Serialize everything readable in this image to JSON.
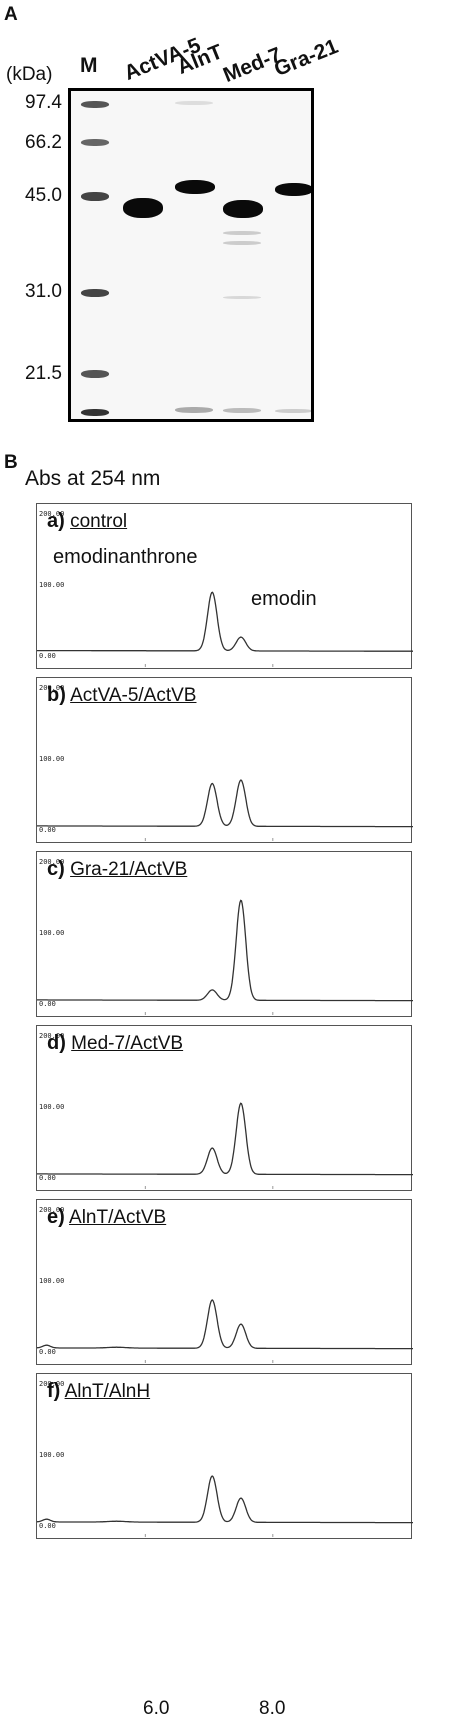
{
  "panel_a": {
    "letter": "A",
    "kda_header": "(kDa)",
    "lanes": [
      "M",
      "ActVA-5",
      "AlnT",
      "Med-7",
      "Gra-21"
    ],
    "markers": [
      "97.4",
      "66.2",
      "45.0",
      "31.0",
      "21.5"
    ]
  },
  "panel_b": {
    "letter": "B",
    "ylabel": "Abs at 254 nm",
    "y_ticks": [
      "200.00",
      "100.00",
      "0.00"
    ],
    "x_ticks": [
      "6.0",
      "8.0"
    ],
    "peak_labels": [
      "emodinanthrone",
      "emodin"
    ],
    "traces": [
      {
        "letter": "a)",
        "label": "control"
      },
      {
        "letter": "b)",
        "label": "ActVA-5/ActVB"
      },
      {
        "letter": "c)",
        "label": "Gra-21/ActVB"
      },
      {
        "letter": "d)",
        "label": "Med-7/ActVB"
      },
      {
        "letter": "e)",
        "label": "AlnT/ActVB"
      },
      {
        "letter": "f)",
        "label": "AlnT/AlnH"
      }
    ]
  },
  "chart_data": {
    "type": "line",
    "xlabel": "",
    "ylabel": "Abs at 254 nm",
    "xlim": [
      4.3,
      10.2
    ],
    "ylim": [
      0,
      200
    ],
    "x_ticks": [
      6.0,
      8.0
    ],
    "peaks_x": [
      7.05,
      7.5
    ],
    "series": [
      {
        "name": "control",
        "peak_heights": [
          85,
          20
        ],
        "baseline": 5
      },
      {
        "name": "ActVA-5/ActVB",
        "peak_heights": [
          62,
          67
        ],
        "baseline": 3
      },
      {
        "name": "Gra-21/ActVB",
        "peak_heights": [
          15,
          145
        ],
        "baseline": 3
      },
      {
        "name": "Med-7/ActVB",
        "peak_heights": [
          38,
          103
        ],
        "baseline": 3
      },
      {
        "name": "AlnT/ActVB",
        "peak_heights": [
          70,
          35
        ],
        "baseline": 3
      },
      {
        "name": "AlnT/AlnH",
        "peak_heights": [
          67,
          35
        ],
        "baseline": 3
      }
    ]
  }
}
